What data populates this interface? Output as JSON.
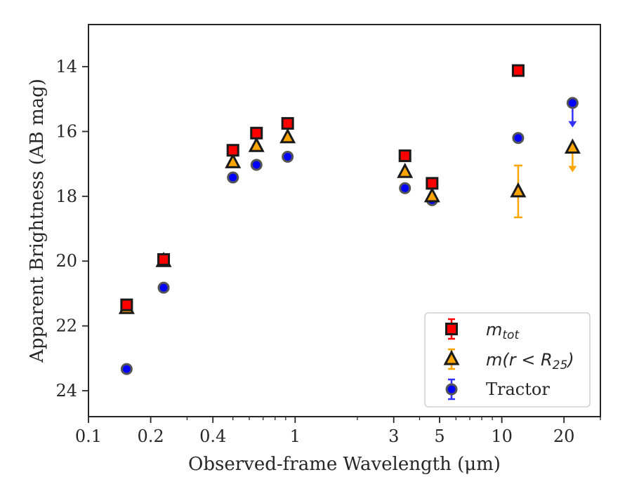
{
  "chart_data": {
    "type": "scatter",
    "title": "",
    "xlabel": "Observed-frame Wavelength (μm)",
    "ylabel": "Apparent Brightness (AB mag)",
    "xscale": "log",
    "xlim": [
      0.1,
      30
    ],
    "ylim": [
      24.8,
      12.7
    ],
    "y_inverted": true,
    "x_tick_labels": [
      "0.1",
      "0.2",
      "0.4",
      "1",
      "3",
      "5",
      "10",
      "20"
    ],
    "x_tick_values": [
      0.1,
      0.2,
      0.4,
      1,
      3,
      5,
      10,
      20
    ],
    "y_tick_labels": [
      "14",
      "16",
      "18",
      "20",
      "22",
      "24"
    ],
    "y_tick_values": [
      14,
      16,
      18,
      20,
      22,
      24
    ],
    "grid": false,
    "legend_position": "bottom-right",
    "series": [
      {
        "name": "m_tot",
        "legend_main": "m",
        "legend_sub": "tot",
        "marker": "square",
        "color": "#ff0000",
        "error_color": "#ff0000",
        "points": [
          {
            "x": 0.153,
            "y": 21.35
          },
          {
            "x": 0.231,
            "y": 19.95
          },
          {
            "x": 0.5,
            "y": 16.58
          },
          {
            "x": 0.65,
            "y": 16.05
          },
          {
            "x": 0.92,
            "y": 15.75
          },
          {
            "x": 3.4,
            "y": 16.75
          },
          {
            "x": 4.6,
            "y": 17.6
          },
          {
            "x": 12.0,
            "y": 14.12
          }
        ]
      },
      {
        "name": "m(r < R25)",
        "legend_main": "m(r < R",
        "legend_sub": "25",
        "legend_tail": ")",
        "marker": "triangle",
        "color": "#ffa500",
        "error_color": "#ffa500",
        "points": [
          {
            "x": 0.153,
            "y": 21.45
          },
          {
            "x": 0.231,
            "y": 20.0
          },
          {
            "x": 0.5,
            "y": 16.95
          },
          {
            "x": 0.65,
            "y": 16.45
          },
          {
            "x": 0.92,
            "y": 16.18
          },
          {
            "x": 3.4,
            "y": 17.25
          },
          {
            "x": 4.6,
            "y": 18.0
          },
          {
            "x": 12.0,
            "y": 17.85,
            "yerr": 0.8
          },
          {
            "x": 22.0,
            "y": 16.5,
            "upper_limit": true
          }
        ]
      },
      {
        "name": "Tractor",
        "marker": "circle",
        "color": "#0000ff",
        "error_color": "#3333ff",
        "points": [
          {
            "x": 0.153,
            "y": 23.33
          },
          {
            "x": 0.231,
            "y": 20.82
          },
          {
            "x": 0.5,
            "y": 17.42
          },
          {
            "x": 0.65,
            "y": 17.03
          },
          {
            "x": 0.92,
            "y": 16.78
          },
          {
            "x": 3.4,
            "y": 17.75
          },
          {
            "x": 4.6,
            "y": 18.12
          },
          {
            "x": 12.0,
            "y": 16.2
          },
          {
            "x": 22.0,
            "y": 15.12,
            "upper_limit": true
          }
        ]
      }
    ]
  }
}
